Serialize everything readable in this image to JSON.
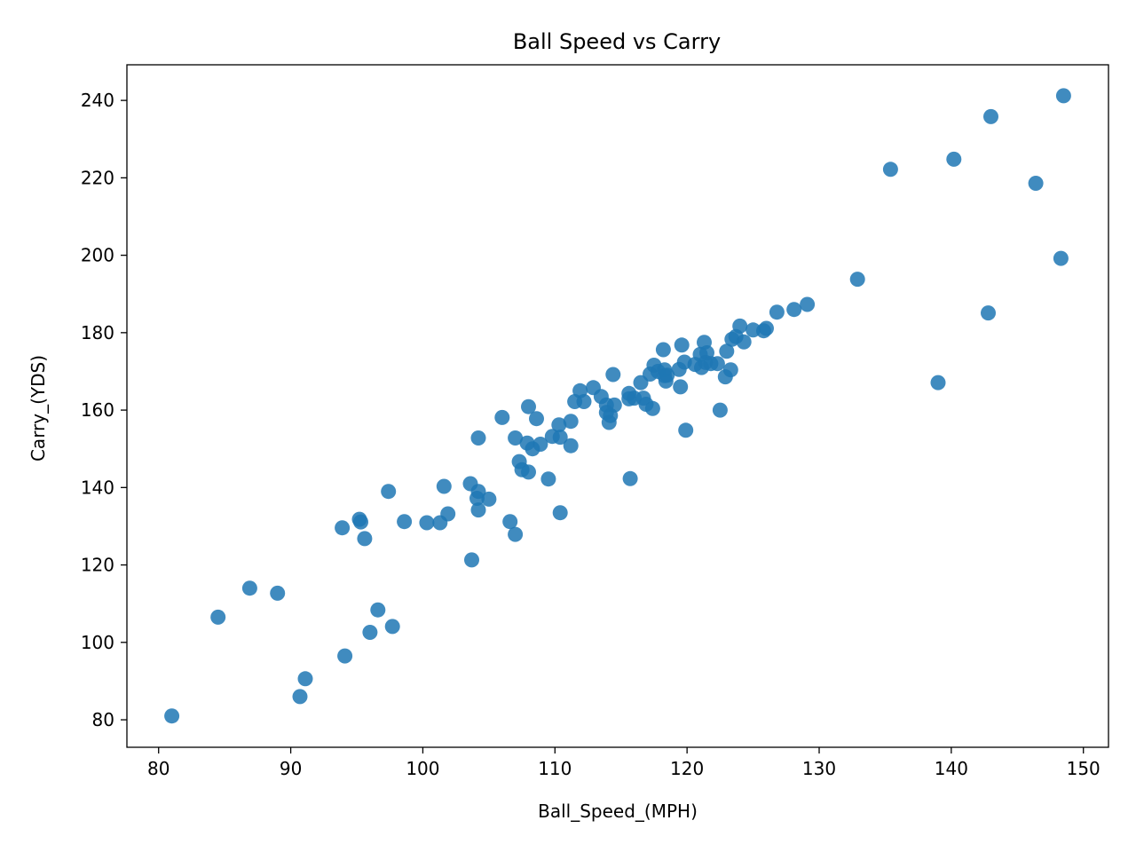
{
  "chart_data": {
    "type": "scatter",
    "title": "Ball Speed vs Carry",
    "xlabel": "Ball_Speed_(MPH)",
    "ylabel": "Carry_(YDS)",
    "xlim": [
      77.6,
      151.9
    ],
    "ylim": [
      72.9,
      249.2
    ],
    "xticks": [
      80,
      90,
      100,
      110,
      120,
      130,
      140,
      150
    ],
    "yticks": [
      80,
      100,
      120,
      140,
      160,
      180,
      200,
      220,
      240
    ],
    "grid": false,
    "marker_color": "#1f77b4",
    "marker_alpha": 0.85,
    "points": [
      [
        81.0,
        81.0
      ],
      [
        84.5,
        106.5
      ],
      [
        86.9,
        114.0
      ],
      [
        89.0,
        112.7
      ],
      [
        90.7,
        86.0
      ],
      [
        91.1,
        90.6
      ],
      [
        93.9,
        129.6
      ],
      [
        94.1,
        96.5
      ],
      [
        95.2,
        131.8
      ],
      [
        95.3,
        131.1
      ],
      [
        95.6,
        126.8
      ],
      [
        96.0,
        102.6
      ],
      [
        96.6,
        108.4
      ],
      [
        97.4,
        139.0
      ],
      [
        97.7,
        104.1
      ],
      [
        98.6,
        131.2
      ],
      [
        100.3,
        130.9
      ],
      [
        101.3,
        130.9
      ],
      [
        101.6,
        140.3
      ],
      [
        101.9,
        133.2
      ],
      [
        103.6,
        141.0
      ],
      [
        103.7,
        121.3
      ],
      [
        104.1,
        137.2
      ],
      [
        104.2,
        134.2
      ],
      [
        104.2,
        139.0
      ],
      [
        104.2,
        152.8
      ],
      [
        105.0,
        137.0
      ],
      [
        106.0,
        158.1
      ],
      [
        106.6,
        131.2
      ],
      [
        107.0,
        152.8
      ],
      [
        107.0,
        127.9
      ],
      [
        107.3,
        146.7
      ],
      [
        107.5,
        144.6
      ],
      [
        107.9,
        151.5
      ],
      [
        108.0,
        160.9
      ],
      [
        108.0,
        144.0
      ],
      [
        108.3,
        150.0
      ],
      [
        108.6,
        157.8
      ],
      [
        108.9,
        151.2
      ],
      [
        109.5,
        142.2
      ],
      [
        109.8,
        153.2
      ],
      [
        110.3,
        156.2
      ],
      [
        110.4,
        153.0
      ],
      [
        110.4,
        133.5
      ],
      [
        111.2,
        157.1
      ],
      [
        111.2,
        150.8
      ],
      [
        111.5,
        162.2
      ],
      [
        111.9,
        165.0
      ],
      [
        112.2,
        162.2
      ],
      [
        112.9,
        165.8
      ],
      [
        113.5,
        163.5
      ],
      [
        113.9,
        161.3
      ],
      [
        113.9,
        159.4
      ],
      [
        114.1,
        156.8
      ],
      [
        114.2,
        158.6
      ],
      [
        114.4,
        169.2
      ],
      [
        114.5,
        161.3
      ],
      [
        115.6,
        164.3
      ],
      [
        115.6,
        162.9
      ],
      [
        115.7,
        142.3
      ],
      [
        116.0,
        163.1
      ],
      [
        116.5,
        167.1
      ],
      [
        116.7,
        163.1
      ],
      [
        116.9,
        161.5
      ],
      [
        117.2,
        169.3
      ],
      [
        117.4,
        160.4
      ],
      [
        117.5,
        171.6
      ],
      [
        117.8,
        170.0
      ],
      [
        118.2,
        175.6
      ],
      [
        118.3,
        170.4
      ],
      [
        118.3,
        168.9
      ],
      [
        118.4,
        167.5
      ],
      [
        118.5,
        169.0
      ],
      [
        119.4,
        170.5
      ],
      [
        119.5,
        166.0
      ],
      [
        119.6,
        176.8
      ],
      [
        119.8,
        172.4
      ],
      [
        119.9,
        154.8
      ],
      [
        120.6,
        171.8
      ],
      [
        121.0,
        174.4
      ],
      [
        121.1,
        171.0
      ],
      [
        121.3,
        177.5
      ],
      [
        121.4,
        172.3
      ],
      [
        121.5,
        174.8
      ],
      [
        121.8,
        172.0
      ],
      [
        122.3,
        172.0
      ],
      [
        122.5,
        160.0
      ],
      [
        122.9,
        168.6
      ],
      [
        123.0,
        175.2
      ],
      [
        123.3,
        170.4
      ],
      [
        123.4,
        178.3
      ],
      [
        123.7,
        179.0
      ],
      [
        124.0,
        181.7
      ],
      [
        124.3,
        177.6
      ],
      [
        125.0,
        180.7
      ],
      [
        125.8,
        180.5
      ],
      [
        126.0,
        181.1
      ],
      [
        126.8,
        185.3
      ],
      [
        128.1,
        186.0
      ],
      [
        129.1,
        187.3
      ],
      [
        132.9,
        193.8
      ],
      [
        135.4,
        222.2
      ],
      [
        139.0,
        167.1
      ],
      [
        140.2,
        224.8
      ],
      [
        142.8,
        185.1
      ],
      [
        143.0,
        235.8
      ],
      [
        146.4,
        218.6
      ],
      [
        148.3,
        199.2
      ],
      [
        148.5,
        241.2
      ]
    ]
  }
}
